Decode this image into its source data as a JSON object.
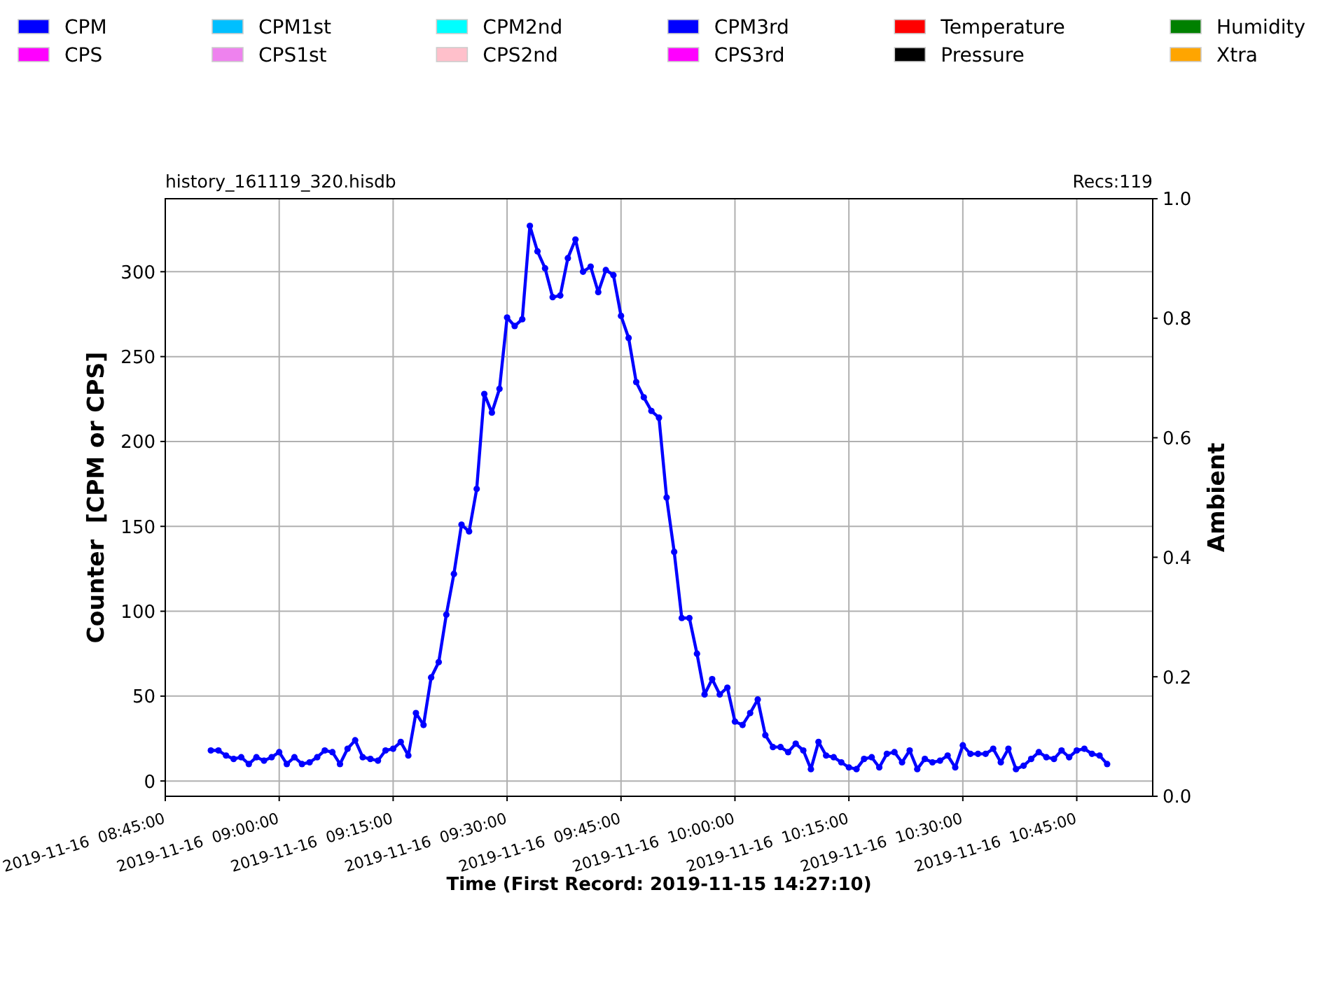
{
  "chart_data": {
    "type": "line",
    "title": "history_161119_320.hisdb",
    "subtitle": "Recs:119",
    "xlabel": "Time (First Record: 2019-11-15 14:27:10)",
    "ylabel": "Counter  [CPM or CPS]",
    "y2label": "Ambient",
    "xlim": [
      "2019-11-16T08:45",
      "2019-11-16T10:55"
    ],
    "xticks": [
      {
        "value": "2019-11-16T08:45",
        "label": "2019-11-16  08:45:00"
      },
      {
        "value": "2019-11-16T09:00",
        "label": "2019-11-16  09:00:00"
      },
      {
        "value": "2019-11-16T09:15",
        "label": "2019-11-16  09:15:00"
      },
      {
        "value": "2019-11-16T09:30",
        "label": "2019-11-16  09:30:00"
      },
      {
        "value": "2019-11-16T09:45",
        "label": "2019-11-16  09:45:00"
      },
      {
        "value": "2019-11-16T10:00",
        "label": "2019-11-16  10:00:00"
      },
      {
        "value": "2019-11-16T10:15",
        "label": "2019-11-16  10:15:00"
      },
      {
        "value": "2019-11-16T10:30",
        "label": "2019-11-16  10:30:00"
      },
      {
        "value": "2019-11-16T10:45",
        "label": "2019-11-16  10:45:00"
      }
    ],
    "ylim": [
      -9,
      343
    ],
    "yticks": [
      0,
      50,
      100,
      150,
      200,
      250,
      300
    ],
    "y2lim": [
      0,
      1
    ],
    "y2ticks": [
      {
        "value": 0,
        "label": "0.0"
      },
      {
        "value": 0.2,
        "label": "0.2"
      },
      {
        "value": 0.4,
        "label": "0.4"
      },
      {
        "value": 0.6,
        "label": "0.6"
      },
      {
        "value": 0.8,
        "label": "0.8"
      },
      {
        "value": 1,
        "label": "1.0"
      }
    ],
    "grid": true,
    "legend": "top",
    "marker": "circle",
    "line_style": "solid",
    "series": [
      {
        "name": "CPM",
        "color": "#0000ff"
      },
      {
        "name": "CPS",
        "color": "#ff00ff"
      },
      {
        "name": "CPM1st",
        "color": "#00bfff"
      },
      {
        "name": "CPS1st",
        "color": "#ee82ee"
      },
      {
        "name": "CPM2nd",
        "color": "#00ffff"
      },
      {
        "name": "CPS2nd",
        "color": "#ffc0cb"
      },
      {
        "name": "CPM3rd",
        "color": "#0000ff",
        "x": [
          "2019-11-16T08:51",
          "2019-11-16T08:52",
          "2019-11-16T08:53",
          "2019-11-16T08:54",
          "2019-11-16T08:55",
          "2019-11-16T08:56",
          "2019-11-16T08:57",
          "2019-11-16T08:58",
          "2019-11-16T08:59",
          "2019-11-16T09:00",
          "2019-11-16T09:01",
          "2019-11-16T09:02",
          "2019-11-16T09:03",
          "2019-11-16T09:04",
          "2019-11-16T09:05",
          "2019-11-16T09:06",
          "2019-11-16T09:07",
          "2019-11-16T09:08",
          "2019-11-16T09:09",
          "2019-11-16T09:10",
          "2019-11-16T09:11",
          "2019-11-16T09:12",
          "2019-11-16T09:13",
          "2019-11-16T09:14",
          "2019-11-16T09:15",
          "2019-11-16T09:16",
          "2019-11-16T09:17",
          "2019-11-16T09:18",
          "2019-11-16T09:19",
          "2019-11-16T09:20",
          "2019-11-16T09:21",
          "2019-11-16T09:22",
          "2019-11-16T09:23",
          "2019-11-16T09:24",
          "2019-11-16T09:25",
          "2019-11-16T09:26",
          "2019-11-16T09:27",
          "2019-11-16T09:28",
          "2019-11-16T09:29",
          "2019-11-16T09:30",
          "2019-11-16T09:31",
          "2019-11-16T09:32",
          "2019-11-16T09:33",
          "2019-11-16T09:34",
          "2019-11-16T09:35",
          "2019-11-16T09:36",
          "2019-11-16T09:37",
          "2019-11-16T09:38",
          "2019-11-16T09:39",
          "2019-11-16T09:40",
          "2019-11-16T09:41",
          "2019-11-16T09:42",
          "2019-11-16T09:43",
          "2019-11-16T09:44",
          "2019-11-16T09:45",
          "2019-11-16T09:46",
          "2019-11-16T09:47",
          "2019-11-16T09:48",
          "2019-11-16T09:49",
          "2019-11-16T09:50",
          "2019-11-16T09:51",
          "2019-11-16T09:52",
          "2019-11-16T09:53",
          "2019-11-16T09:54",
          "2019-11-16T09:55",
          "2019-11-16T09:56",
          "2019-11-16T09:57",
          "2019-11-16T09:58",
          "2019-11-16T09:59",
          "2019-11-16T10:00",
          "2019-11-16T10:01",
          "2019-11-16T10:02",
          "2019-11-16T10:03",
          "2019-11-16T10:04",
          "2019-11-16T10:05",
          "2019-11-16T10:06",
          "2019-11-16T10:07",
          "2019-11-16T10:08",
          "2019-11-16T10:09",
          "2019-11-16T10:10",
          "2019-11-16T10:11",
          "2019-11-16T10:12",
          "2019-11-16T10:13",
          "2019-11-16T10:14",
          "2019-11-16T10:15",
          "2019-11-16T10:16",
          "2019-11-16T10:17",
          "2019-11-16T10:18",
          "2019-11-16T10:19",
          "2019-11-16T10:20",
          "2019-11-16T10:21",
          "2019-11-16T10:22",
          "2019-11-16T10:23",
          "2019-11-16T10:24",
          "2019-11-16T10:25",
          "2019-11-16T10:26",
          "2019-11-16T10:27",
          "2019-11-16T10:28",
          "2019-11-16T10:29",
          "2019-11-16T10:30",
          "2019-11-16T10:31",
          "2019-11-16T10:32",
          "2019-11-16T10:33",
          "2019-11-16T10:34",
          "2019-11-16T10:35",
          "2019-11-16T10:36",
          "2019-11-16T10:37",
          "2019-11-16T10:38",
          "2019-11-16T10:39",
          "2019-11-16T10:40",
          "2019-11-16T10:41",
          "2019-11-16T10:42",
          "2019-11-16T10:43",
          "2019-11-16T10:44",
          "2019-11-16T10:45",
          "2019-11-16T10:46",
          "2019-11-16T10:47",
          "2019-11-16T10:48",
          "2019-11-16T10:49"
        ],
        "values": [
          18,
          18,
          15,
          13,
          14,
          10,
          14,
          12,
          14,
          17,
          10,
          14,
          10,
          11,
          14,
          18,
          17,
          10,
          19,
          24,
          14,
          13,
          12,
          18,
          19,
          23,
          15,
          40,
          33,
          61,
          70,
          98,
          122,
          151,
          147,
          172,
          228,
          217,
          231,
          273,
          268,
          272,
          327,
          312,
          302,
          285,
          286,
          308,
          319,
          300,
          303,
          288,
          301,
          298,
          274,
          261,
          235,
          226,
          218,
          214,
          167,
          135,
          96,
          96,
          75,
          51,
          60,
          51,
          55,
          35,
          33,
          40,
          48,
          27,
          20,
          20,
          17,
          22,
          18,
          7,
          23,
          15,
          14,
          11,
          8,
          7,
          13,
          14,
          8,
          16,
          17,
          11,
          18,
          7,
          13,
          11,
          12,
          15,
          8,
          21,
          16,
          16,
          16,
          19,
          11,
          19,
          7,
          9,
          13,
          17,
          14,
          13,
          18,
          14,
          18,
          19,
          16,
          15,
          10
        ]
      },
      {
        "name": "CPS3rd",
        "color": "#ff00ff"
      },
      {
        "name": "Temperature",
        "color": "#ff0000"
      },
      {
        "name": "Pressure",
        "color": "#000000"
      },
      {
        "name": "Humidity",
        "color": "#008000"
      },
      {
        "name": "Xtra",
        "color": "#ffa500"
      }
    ]
  }
}
